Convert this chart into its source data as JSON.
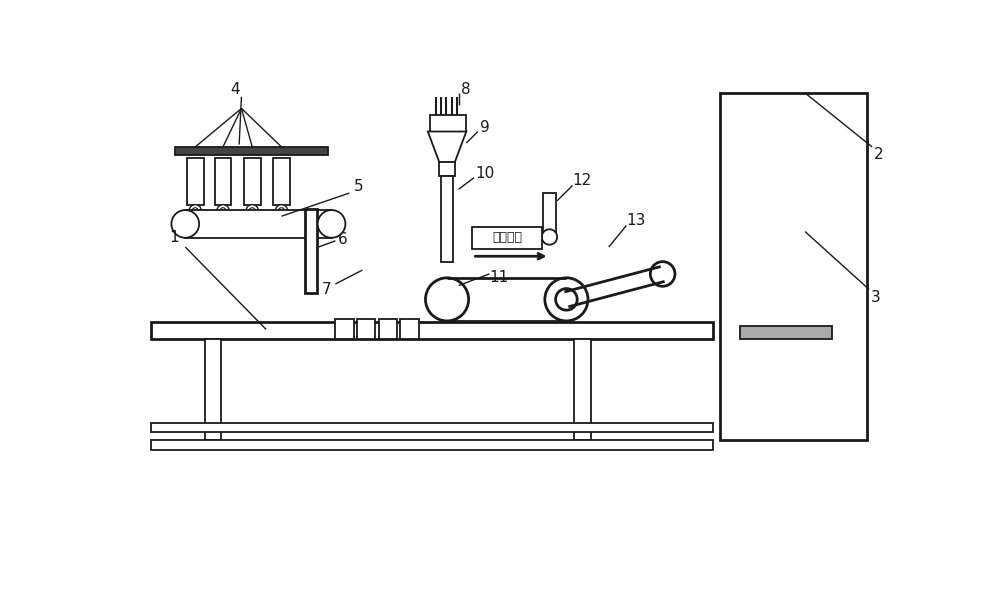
{
  "bg_color": "#ffffff",
  "line_color": "#1a1a1a",
  "fig_width": 10.0,
  "fig_height": 5.89,
  "arrow_text": "布料方向"
}
